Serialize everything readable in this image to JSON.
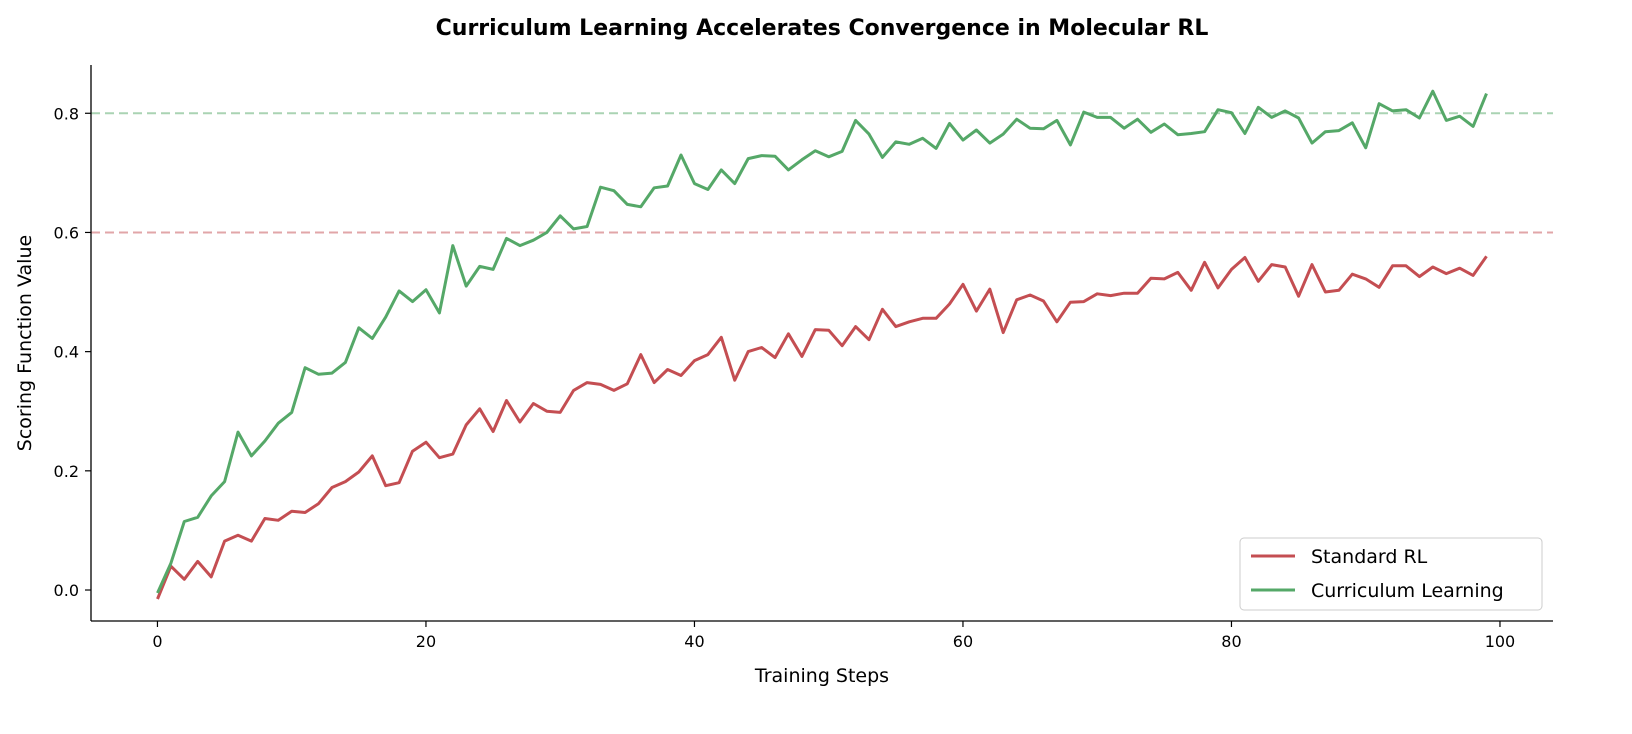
{
  "chart_data": {
    "type": "line",
    "title": "Curriculum Learning Accelerates Convergence in Molecular RL",
    "xlabel": "Training Steps",
    "ylabel": "Scoring Function Value",
    "xlim": [
      -4.95,
      103.95
    ],
    "ylim": [
      -0.052,
      0.881
    ],
    "xticks": [
      0,
      20,
      40,
      60,
      80,
      100
    ],
    "xtick_labels": [
      "0",
      "20",
      "40",
      "60",
      "80",
      "100"
    ],
    "yticks": [
      0.0,
      0.2,
      0.4,
      0.6,
      0.8
    ],
    "ytick_labels": [
      "0.0",
      "0.2",
      "0.4",
      "0.6",
      "0.8"
    ],
    "grid": false,
    "legend_position": "lower-right",
    "reference_lines": [
      {
        "y": 0.8,
        "color": "#55a868",
        "style": "dashed"
      },
      {
        "y": 0.6,
        "color": "#c44e52",
        "style": "dashed"
      }
    ],
    "series": [
      {
        "name": "Standard RL",
        "color": "#c44e52",
        "values": [
          -0.015,
          0.04,
          0.018,
          0.048,
          0.022,
          0.082,
          0.092,
          0.082,
          0.12,
          0.117,
          0.132,
          0.13,
          0.145,
          0.172,
          0.182,
          0.198,
          0.225,
          0.175,
          0.18,
          0.233,
          0.248,
          0.222,
          0.228,
          0.277,
          0.304,
          0.266,
          0.318,
          0.282,
          0.313,
          0.3,
          0.298,
          0.335,
          0.348,
          0.345,
          0.335,
          0.346,
          0.395,
          0.348,
          0.37,
          0.36,
          0.385,
          0.395,
          0.424,
          0.352,
          0.4,
          0.407,
          0.39,
          0.43,
          0.392,
          0.437,
          0.436,
          0.41,
          0.442,
          0.42,
          0.471,
          0.442,
          0.45,
          0.456,
          0.456,
          0.48,
          0.513,
          0.468,
          0.505,
          0.432,
          0.487,
          0.495,
          0.485,
          0.45,
          0.483,
          0.484,
          0.497,
          0.494,
          0.498,
          0.498,
          0.523,
          0.522,
          0.533,
          0.503,
          0.55,
          0.507,
          0.538,
          0.558,
          0.518,
          0.546,
          0.542,
          0.493,
          0.546,
          0.5,
          0.503,
          0.53,
          0.522,
          0.508,
          0.544,
          0.544,
          0.526,
          0.542,
          0.531,
          0.54,
          0.528,
          0.56
        ]
      },
      {
        "name": "Curriculum Learning",
        "color": "#55a868",
        "values": [
          -0.005,
          0.045,
          0.115,
          0.122,
          0.158,
          0.182,
          0.265,
          0.225,
          0.25,
          0.28,
          0.298,
          0.373,
          0.362,
          0.364,
          0.382,
          0.44,
          0.422,
          0.458,
          0.502,
          0.484,
          0.504,
          0.465,
          0.578,
          0.51,
          0.543,
          0.538,
          0.59,
          0.578,
          0.587,
          0.6,
          0.628,
          0.606,
          0.61,
          0.676,
          0.67,
          0.647,
          0.643,
          0.675,
          0.678,
          0.73,
          0.682,
          0.672,
          0.705,
          0.682,
          0.724,
          0.729,
          0.728,
          0.705,
          0.722,
          0.737,
          0.727,
          0.736,
          0.788,
          0.765,
          0.726,
          0.752,
          0.748,
          0.758,
          0.741,
          0.783,
          0.755,
          0.772,
          0.75,
          0.765,
          0.79,
          0.775,
          0.774,
          0.788,
          0.747,
          0.802,
          0.793,
          0.793,
          0.775,
          0.79,
          0.768,
          0.782,
          0.764,
          0.766,
          0.769,
          0.806,
          0.801,
          0.766,
          0.81,
          0.793,
          0.804,
          0.792,
          0.75,
          0.769,
          0.771,
          0.784,
          0.742,
          0.816,
          0.804,
          0.806,
          0.792,
          0.837,
          0.788,
          0.795,
          0.778,
          0.833
        ]
      }
    ]
  }
}
